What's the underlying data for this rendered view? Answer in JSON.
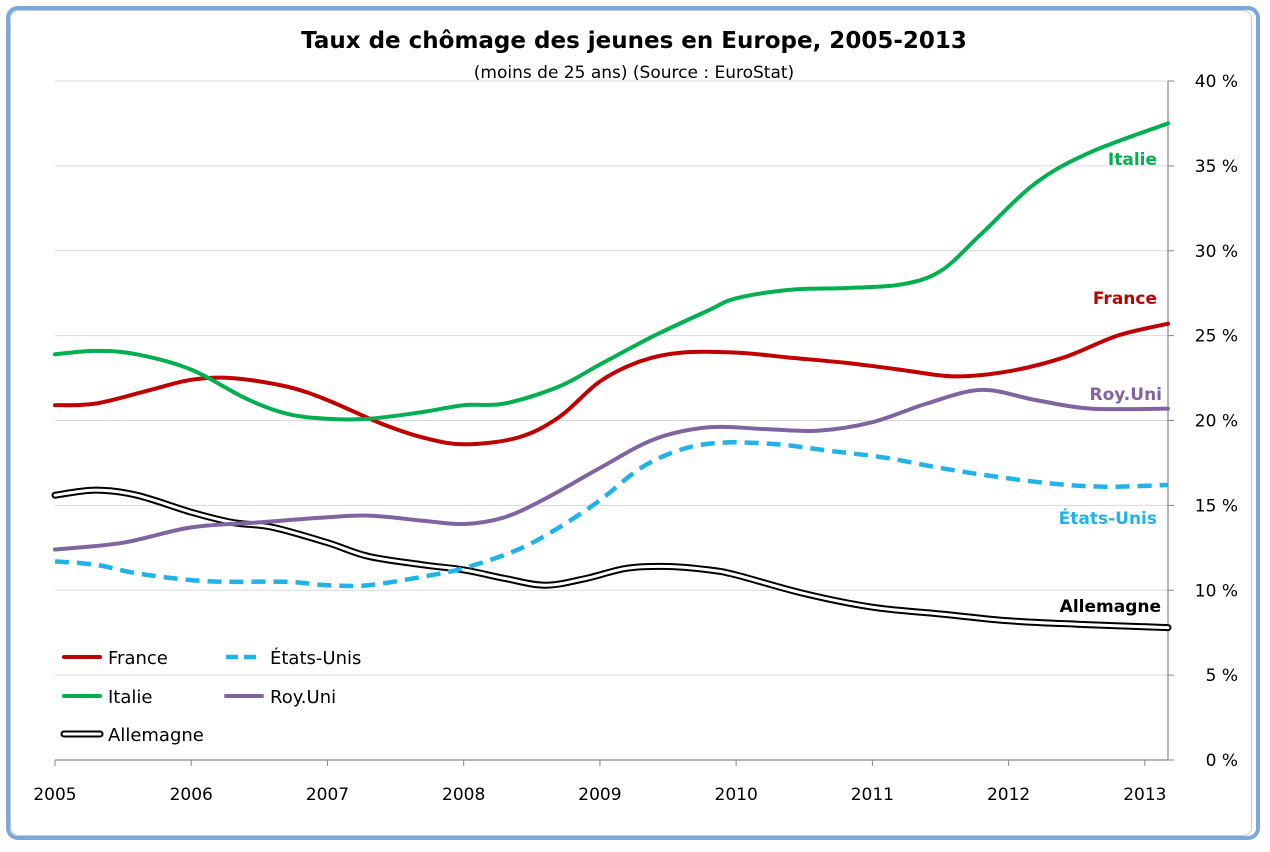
{
  "chart_data": {
    "type": "line",
    "title": "Taux de chômage des jeunes en Europe, 2005-2013",
    "subtitle": "(moins de 25 ans) (Source : EuroStat)",
    "xlabel": "",
    "ylabel": "",
    "x_ticks": [
      "2005",
      "2006",
      "2007",
      "2008",
      "2009",
      "2010",
      "2011",
      "2012",
      "2013"
    ],
    "y_ticks": [
      "0 %",
      "5 %",
      "10 %",
      "15 %",
      "20 %",
      "25 %",
      "30 %",
      "35 %",
      "40 %"
    ],
    "xlim": [
      2005,
      2013.17
    ],
    "ylim": [
      0,
      40
    ],
    "grid": "horizontal",
    "y_axis_side": "right",
    "legend_position": "bottom-left",
    "series": [
      {
        "name": "France",
        "color": "#c00000",
        "style": "solid",
        "x": [
          2005,
          2005.3,
          2005.7,
          2006,
          2006.3,
          2006.7,
          2007,
          2007.4,
          2007.7,
          2008,
          2008.4,
          2008.7,
          2009,
          2009.3,
          2009.6,
          2010,
          2010.4,
          2010.8,
          2011.2,
          2011.6,
          2012,
          2012.4,
          2012.8,
          2013.17
        ],
        "values": [
          20.9,
          21.0,
          21.8,
          22.4,
          22.5,
          22.0,
          21.2,
          19.8,
          19.0,
          18.6,
          19.0,
          20.2,
          22.3,
          23.5,
          24.0,
          24.0,
          23.7,
          23.4,
          23.0,
          22.6,
          22.9,
          23.7,
          25.0,
          25.7
        ]
      },
      {
        "name": "Italie",
        "color": "#00b050",
        "style": "solid",
        "x": [
          2005,
          2005.3,
          2005.6,
          2006,
          2006.4,
          2006.7,
          2007,
          2007.3,
          2007.7,
          2008,
          2008.3,
          2008.7,
          2009,
          2009.4,
          2009.8,
          2010,
          2010.4,
          2010.8,
          2011.2,
          2011.5,
          2011.8,
          2012.2,
          2012.6,
          2013.17
        ],
        "values": [
          23.9,
          24.1,
          23.9,
          23.0,
          21.3,
          20.4,
          20.1,
          20.1,
          20.5,
          20.9,
          21.0,
          22.0,
          23.3,
          25.0,
          26.5,
          27.2,
          27.7,
          27.8,
          28.0,
          28.8,
          31.0,
          34.0,
          35.8,
          37.5
        ]
      },
      {
        "name": "Royaume-Uni",
        "color": "#8064a2",
        "style": "solid",
        "x": [
          2005,
          2005.5,
          2006,
          2006.5,
          2007,
          2007.3,
          2007.7,
          2008,
          2008.3,
          2008.6,
          2009,
          2009.4,
          2009.8,
          2010.2,
          2010.6,
          2011,
          2011.4,
          2011.8,
          2012.2,
          2012.6,
          2013.17
        ],
        "values": [
          12.4,
          12.8,
          13.7,
          14.0,
          14.3,
          14.4,
          14.1,
          13.9,
          14.3,
          15.4,
          17.2,
          18.9,
          19.6,
          19.5,
          19.4,
          19.9,
          21.0,
          21.8,
          21.2,
          20.7,
          20.7
        ]
      },
      {
        "name": "États-Unis",
        "color": "#1fb3e9",
        "style": "dashed",
        "x": [
          2005,
          2005.3,
          2005.6,
          2006,
          2006.3,
          2006.7,
          2007,
          2007.3,
          2007.7,
          2008,
          2008.4,
          2008.7,
          2009,
          2009.3,
          2009.6,
          2009.9,
          2010.3,
          2010.7,
          2011.1,
          2011.5,
          2011.9,
          2012.3,
          2012.7,
          2013.17
        ],
        "values": [
          11.7,
          11.5,
          11.0,
          10.6,
          10.5,
          10.5,
          10.3,
          10.3,
          10.8,
          11.3,
          12.4,
          13.7,
          15.3,
          17.2,
          18.3,
          18.7,
          18.6,
          18.2,
          17.8,
          17.2,
          16.7,
          16.3,
          16.1,
          16.2
        ]
      },
      {
        "name": "Allemagne",
        "color": "#000000",
        "style": "double",
        "x": [
          2005,
          2005.3,
          2005.6,
          2006,
          2006.3,
          2006.6,
          2007,
          2007.3,
          2007.7,
          2008,
          2008.3,
          2008.6,
          2008.9,
          2009.2,
          2009.5,
          2009.8,
          2010,
          2010.5,
          2011,
          2011.5,
          2012,
          2012.5,
          2013.17
        ],
        "values": [
          15.6,
          15.9,
          15.6,
          14.6,
          14.0,
          13.7,
          12.8,
          12.0,
          11.5,
          11.2,
          10.7,
          10.3,
          10.7,
          11.3,
          11.4,
          11.2,
          10.9,
          9.8,
          9.0,
          8.6,
          8.2,
          8.0,
          7.8
        ]
      }
    ],
    "line_labels": [
      "Italie",
      "France",
      "Roy.Uni",
      "États-Unis",
      "Allemagne"
    ],
    "legend": {
      "entries": [
        "France",
        "États-Unis",
        "Italie",
        "Roy.Uni",
        "Allemagne"
      ]
    }
  }
}
